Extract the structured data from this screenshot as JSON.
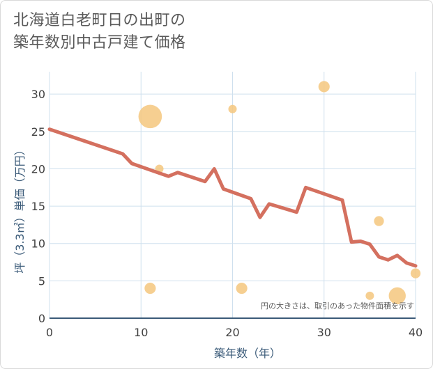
{
  "chart_data": {
    "type": "scatter+line",
    "title_lines": [
      "北海道白老町日の出町の",
      "築年数別中古戸建て価格"
    ],
    "xlabel": "築年数（年）",
    "ylabel": "坪（3.3㎡）単価（万円）",
    "xlim": [
      0,
      40
    ],
    "ylim": [
      0,
      33
    ],
    "x_ticks": [
      0,
      10,
      20,
      30,
      40
    ],
    "y_ticks": [
      0,
      5,
      10,
      15,
      20,
      25,
      30
    ],
    "note": "円の大きさは、取引のあった物件面積を示す",
    "colors": {
      "line": "#d4705f",
      "bubble": "#f5c77e",
      "grid": "#cfe0ee",
      "axis": "#3a5a78"
    },
    "line_series": {
      "name": "trend",
      "x": [
        0,
        8,
        9,
        13,
        14,
        17,
        18,
        19,
        22,
        23,
        24,
        27,
        28,
        32,
        33,
        34,
        35,
        36,
        37,
        38,
        39,
        40
      ],
      "y": [
        25.3,
        22,
        20.7,
        19,
        19.5,
        18.3,
        20,
        17.3,
        16,
        13.5,
        15.3,
        14.2,
        17.5,
        15.8,
        10.2,
        10.3,
        9.9,
        8.2,
        7.8,
        8.4,
        7.4,
        7
      ]
    },
    "bubble_series": {
      "name": "transactions",
      "points": [
        {
          "x": 11,
          "y": 27,
          "size": 10
        },
        {
          "x": 12,
          "y": 20,
          "size": 1
        },
        {
          "x": 11,
          "y": 4,
          "size": 2
        },
        {
          "x": 20,
          "y": 28,
          "size": 1
        },
        {
          "x": 21,
          "y": 4,
          "size": 2
        },
        {
          "x": 30,
          "y": 31,
          "size": 2
        },
        {
          "x": 35,
          "y": 3,
          "size": 1
        },
        {
          "x": 36,
          "y": 13,
          "size": 1.5
        },
        {
          "x": 38,
          "y": 3,
          "size": 5
        },
        {
          "x": 40,
          "y": 6,
          "size": 1.5
        }
      ]
    }
  }
}
